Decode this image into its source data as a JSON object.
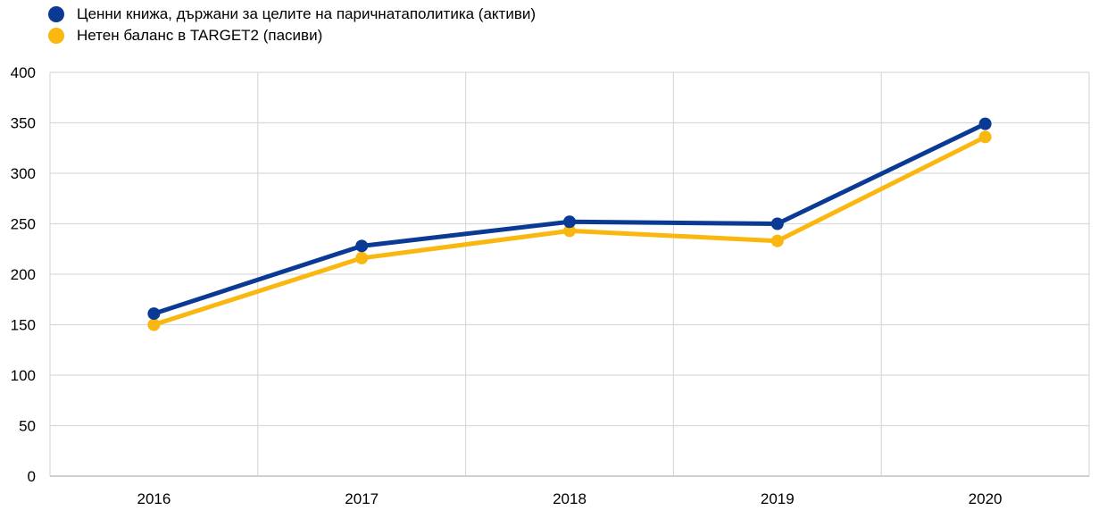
{
  "chart_data": {
    "type": "line",
    "title": "",
    "xlabel": "",
    "ylabel": "",
    "categories": [
      "2016",
      "2017",
      "2018",
      "2019",
      "2020"
    ],
    "ylim": [
      0,
      400
    ],
    "yticks": [
      "0",
      "50",
      "100",
      "150",
      "200",
      "250",
      "300",
      "350",
      "400"
    ],
    "grid": true,
    "legend_position": "top-left",
    "series": [
      {
        "name": "Ценни книжа, държани за целите на паричнатаполитика (активи)",
        "values": [
          161,
          228,
          252,
          250,
          349
        ],
        "color": "#0b3a94"
      },
      {
        "name": "Нетен баланс в TARGET2 (пасиви)",
        "values": [
          150,
          216,
          243,
          233,
          336
        ],
        "color": "#f9b710"
      }
    ]
  }
}
